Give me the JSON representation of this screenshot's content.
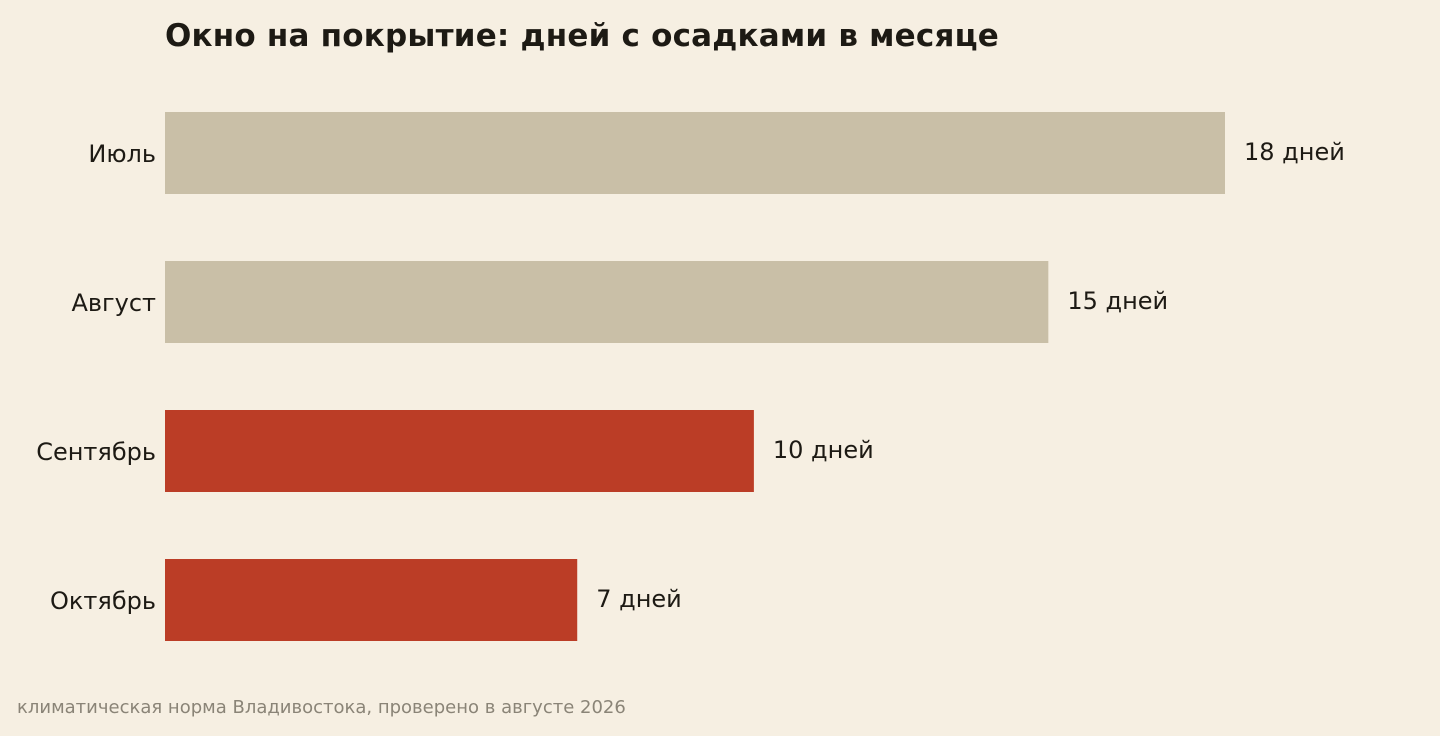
{
  "chart_data": {
    "type": "bar",
    "orientation": "horizontal",
    "title": "Окно на покрытие: дней с осадками в месяце",
    "categories": [
      "Июль",
      "Август",
      "Сентябрь",
      "Октябрь"
    ],
    "values": [
      18,
      15,
      10,
      7
    ],
    "value_labels": [
      "18 дней",
      "15 дней",
      "10 дней",
      "7 дней"
    ],
    "bar_colors": [
      "#c9bfa7",
      "#c9bfa7",
      "#bb3d26",
      "#bb3d26"
    ],
    "xlim": [
      0,
      18
    ],
    "grid": false,
    "xlabel": "",
    "ylabel": ""
  },
  "footnote": "климатическая норма Владивостока, проверено в августе 2026",
  "colors": {
    "background": "#f6efe2",
    "text": "#1d1a14",
    "muted": "#8a8477",
    "highlight": "#bb3d26",
    "neutral": "#c9bfa7"
  }
}
